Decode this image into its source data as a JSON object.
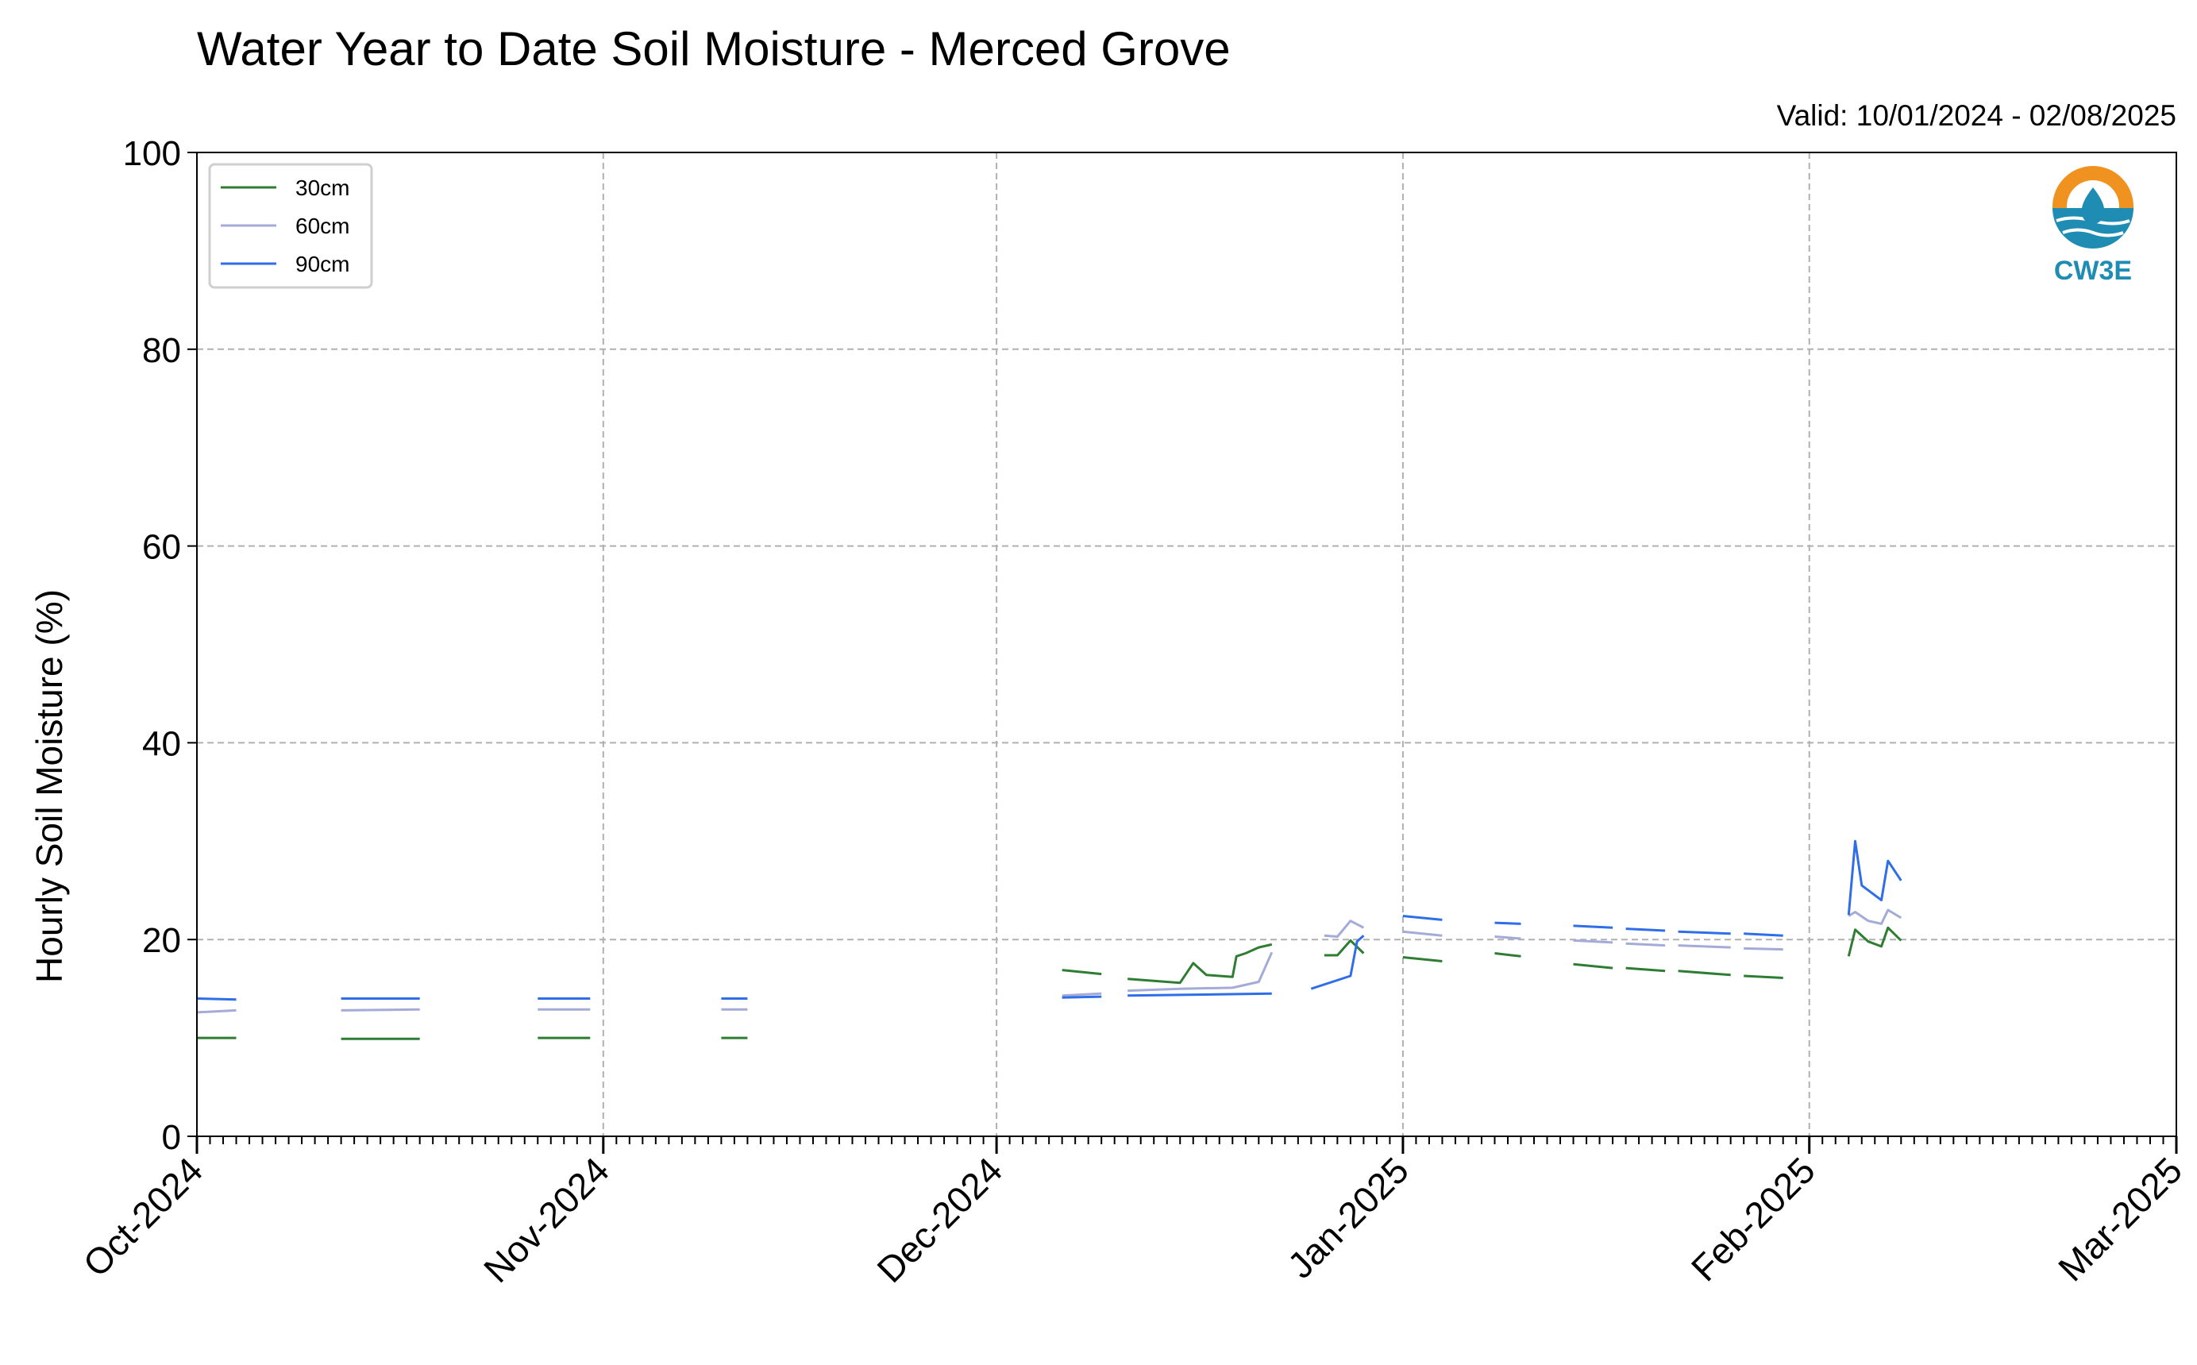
{
  "chart_data": {
    "type": "line",
    "title": "Water Year to Date Soil Moisture - Merced Grove",
    "subtitle": "Valid: 10/01/2024 - 02/08/2025",
    "ylabel": "Hourly Soil Moisture (%)",
    "xlabel": "",
    "ylim": [
      0,
      100
    ],
    "xlim": [
      "2024-10-01",
      "2025-03-01"
    ],
    "yticks": [
      "0",
      "20",
      "40",
      "60",
      "80",
      "100"
    ],
    "xticks": [
      {
        "date": "2024-10-01",
        "label": "Oct-2024"
      },
      {
        "date": "2024-11-01",
        "label": "Nov-2024"
      },
      {
        "date": "2024-12-01",
        "label": "Dec-2024"
      },
      {
        "date": "2025-01-01",
        "label": "Jan-2025"
      },
      {
        "date": "2025-02-01",
        "label": "Feb-2025"
      },
      {
        "date": "2025-03-01",
        "label": "Mar-2025"
      }
    ],
    "grid": true,
    "legend_position": "top-left",
    "logo_text": "CW3E",
    "series": [
      {
        "name": "30cm",
        "color": "#2e7d32",
        "segments": [
          [
            [
              "2024-10-01",
              10.0
            ],
            [
              "2024-10-04",
              10.0
            ]
          ],
          [
            [
              "2024-10-12",
              9.9
            ],
            [
              "2024-10-18",
              9.9
            ]
          ],
          [
            [
              "2024-10-27",
              10.0
            ],
            [
              "2024-10-31",
              10.0
            ]
          ],
          [
            [
              "2024-11-10",
              10.0
            ],
            [
              "2024-11-12",
              10.0
            ]
          ],
          [
            [
              "2024-12-06",
              16.9
            ],
            [
              "2024-12-09",
              16.5
            ]
          ],
          [
            [
              "2024-12-11",
              16.0
            ],
            [
              "2024-12-15",
              15.6
            ],
            [
              "2024-12-16",
              17.6
            ],
            [
              "2024-12-17",
              16.4
            ],
            [
              "2024-12-19",
              16.2
            ],
            [
              "2024-12-19.3",
              18.3
            ],
            [
              "2024-12-20",
              18.6
            ],
            [
              "2024-12-21",
              19.2
            ],
            [
              "2024-12-22",
              19.5
            ]
          ],
          [
            [
              "2024-12-26",
              18.4
            ],
            [
              "2024-12-27",
              18.4
            ],
            [
              "2024-12-28",
              19.9
            ],
            [
              "2024-12-29",
              18.6
            ]
          ],
          [
            [
              "2025-01-01",
              18.2
            ],
            [
              "2025-01-04",
              17.8
            ]
          ],
          [
            [
              "2025-01-08",
              18.6
            ],
            [
              "2025-01-10",
              18.3
            ]
          ],
          [
            [
              "2025-01-14",
              17.5
            ],
            [
              "2025-01-17",
              17.1
            ]
          ],
          [
            [
              "2025-01-18",
              17.1
            ],
            [
              "2025-01-21",
              16.8
            ]
          ],
          [
            [
              "2025-01-22",
              16.8
            ],
            [
              "2025-01-26",
              16.4
            ]
          ],
          [
            [
              "2025-01-27",
              16.3
            ],
            [
              "2025-01-30",
              16.1
            ]
          ],
          [
            [
              "2025-02-04",
              18.3
            ],
            [
              "2025-02-04.5",
              21.0
            ],
            [
              "2025-02-05.5",
              19.8
            ],
            [
              "2025-02-06.5",
              19.3
            ],
            [
              "2025-02-07",
              21.2
            ],
            [
              "2025-02-08",
              19.9
            ]
          ]
        ]
      },
      {
        "name": "60cm",
        "color": "#a4abd8",
        "segments": [
          [
            [
              "2024-10-01",
              12.6
            ],
            [
              "2024-10-04",
              12.8
            ]
          ],
          [
            [
              "2024-10-12",
              12.8
            ],
            [
              "2024-10-18",
              12.9
            ]
          ],
          [
            [
              "2024-10-27",
              12.9
            ],
            [
              "2024-10-31",
              12.9
            ]
          ],
          [
            [
              "2024-11-10",
              12.9
            ],
            [
              "2024-11-12",
              12.9
            ]
          ],
          [
            [
              "2024-12-06",
              14.3
            ],
            [
              "2024-12-09",
              14.5
            ]
          ],
          [
            [
              "2024-12-11",
              14.8
            ],
            [
              "2024-12-15",
              15.0
            ],
            [
              "2024-12-19",
              15.1
            ],
            [
              "2024-12-21",
              15.7
            ],
            [
              "2024-12-22",
              18.7
            ]
          ],
          [
            [
              "2024-12-26",
              20.4
            ],
            [
              "2024-12-27",
              20.3
            ],
            [
              "2024-12-28",
              21.9
            ],
            [
              "2024-12-29",
              21.2
            ]
          ],
          [
            [
              "2025-01-01",
              20.8
            ],
            [
              "2025-01-04",
              20.4
            ]
          ],
          [
            [
              "2025-01-08",
              20.3
            ],
            [
              "2025-01-10",
              20.1
            ]
          ],
          [
            [
              "2025-01-14",
              19.9
            ],
            [
              "2025-01-17",
              19.7
            ]
          ],
          [
            [
              "2025-01-18",
              19.6
            ],
            [
              "2025-01-21",
              19.4
            ]
          ],
          [
            [
              "2025-01-22",
              19.4
            ],
            [
              "2025-01-26",
              19.2
            ]
          ],
          [
            [
              "2025-01-27",
              19.1
            ],
            [
              "2025-01-30",
              19.0
            ]
          ],
          [
            [
              "2025-02-04",
              22.4
            ],
            [
              "2025-02-04.5",
              22.8
            ],
            [
              "2025-02-05.5",
              21.9
            ],
            [
              "2025-02-06.5",
              21.6
            ],
            [
              "2025-02-07",
              23.0
            ],
            [
              "2025-02-08",
              22.2
            ]
          ]
        ]
      },
      {
        "name": "90cm",
        "color": "#2f6ee8",
        "segments": [
          [
            [
              "2024-10-01",
              14.0
            ],
            [
              "2024-10-04",
              13.9
            ]
          ],
          [
            [
              "2024-10-12",
              14.0
            ],
            [
              "2024-10-18",
              14.0
            ]
          ],
          [
            [
              "2024-10-27",
              14.0
            ],
            [
              "2024-10-31",
              14.0
            ]
          ],
          [
            [
              "2024-11-10",
              14.0
            ],
            [
              "2024-11-12",
              14.0
            ]
          ],
          [
            [
              "2024-12-06",
              14.1
            ],
            [
              "2024-12-09",
              14.2
            ]
          ],
          [
            [
              "2024-12-11",
              14.3
            ],
            [
              "2024-12-22",
              14.5
            ]
          ],
          [
            [
              "2024-12-25",
              15.0
            ],
            [
              "2024-12-28",
              16.3
            ],
            [
              "2024-12-28.5",
              19.8
            ],
            [
              "2024-12-29",
              20.4
            ]
          ],
          [
            [
              "2025-01-01",
              22.4
            ],
            [
              "2025-01-04",
              22.0
            ]
          ],
          [
            [
              "2025-01-08",
              21.7
            ],
            [
              "2025-01-10",
              21.6
            ]
          ],
          [
            [
              "2025-01-14",
              21.4
            ],
            [
              "2025-01-17",
              21.2
            ]
          ],
          [
            [
              "2025-01-18",
              21.1
            ],
            [
              "2025-01-21",
              20.9
            ]
          ],
          [
            [
              "2025-01-22",
              20.8
            ],
            [
              "2025-01-26",
              20.6
            ]
          ],
          [
            [
              "2025-01-27",
              20.6
            ],
            [
              "2025-01-30",
              20.4
            ]
          ],
          [
            [
              "2025-02-04",
              22.5
            ],
            [
              "2025-02-04.5",
              30.0
            ],
            [
              "2025-02-05",
              25.5
            ],
            [
              "2025-02-06.5",
              24.0
            ],
            [
              "2025-02-07",
              28.0
            ],
            [
              "2025-02-08",
              26.0
            ]
          ]
        ]
      }
    ]
  }
}
